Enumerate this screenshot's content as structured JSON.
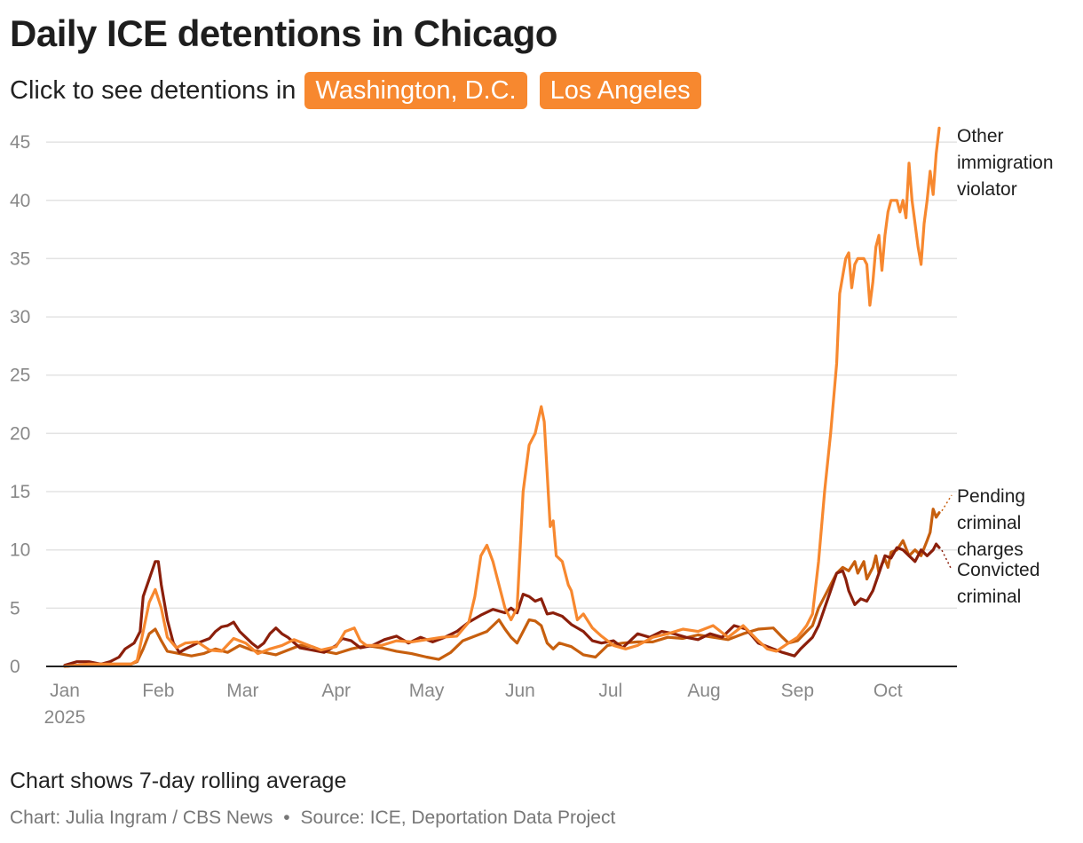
{
  "title": "Daily ICE detentions in Chicago",
  "subtitle": {
    "prefix": "Click to see detentions in",
    "buttons": [
      "Washington, D.C.",
      "Los Angeles"
    ]
  },
  "footer": {
    "note": "Chart shows 7-day rolling average",
    "credit": "Chart: Julia Ingram / CBS News",
    "separator": "•",
    "source": "Source: ICE, Deportation Data Project"
  },
  "colors": {
    "button": "#f7882f",
    "other_immigration_violator": "#f7882f",
    "pending_criminal_charges": "#c75f0e",
    "convicted_criminal": "#8b1f0b"
  },
  "chart_data": {
    "type": "line",
    "x_unit": "day of year 2025 (0 = Jan 1)",
    "x_ticks": [
      {
        "label": "Jan",
        "sublabel": "2025",
        "x": 0
      },
      {
        "label": "Feb",
        "x": 31
      },
      {
        "label": "Mar",
        "x": 59
      },
      {
        "label": "Apr",
        "x": 90
      },
      {
        "label": "May",
        "x": 120
      },
      {
        "label": "Jun",
        "x": 151
      },
      {
        "label": "Jul",
        "x": 181
      },
      {
        "label": "Aug",
        "x": 212
      },
      {
        "label": "Sep",
        "x": 243
      },
      {
        "label": "Oct",
        "x": 273
      }
    ],
    "xlim": [
      0,
      290
    ],
    "ylim": [
      0,
      46
    ],
    "y_ticks": [
      0,
      5,
      10,
      15,
      20,
      25,
      30,
      35,
      40,
      45
    ],
    "grid": true,
    "series": [
      {
        "name": "Other immigration violator",
        "label_lines": [
          "Other",
          "immigration",
          "violator"
        ],
        "color": "#f7882f",
        "points": [
          [
            0,
            0
          ],
          [
            8,
            0.2
          ],
          [
            16,
            0.2
          ],
          [
            22,
            0.2
          ],
          [
            24,
            0.5
          ],
          [
            26,
            3
          ],
          [
            28,
            5.5
          ],
          [
            30,
            6.6
          ],
          [
            32,
            5
          ],
          [
            34,
            2.5
          ],
          [
            37,
            1.6
          ],
          [
            40,
            2
          ],
          [
            44,
            2.1
          ],
          [
            48,
            1.4
          ],
          [
            52,
            1.3
          ],
          [
            56,
            2.4
          ],
          [
            60,
            2
          ],
          [
            64,
            1.1
          ],
          [
            68,
            1.5
          ],
          [
            72,
            1.8
          ],
          [
            76,
            2.3
          ],
          [
            80,
            1.9
          ],
          [
            85,
            1.4
          ],
          [
            90,
            1.7
          ],
          [
            93,
            3
          ],
          [
            96,
            3.3
          ],
          [
            98,
            2.2
          ],
          [
            100,
            1.8
          ],
          [
            105,
            1.8
          ],
          [
            110,
            2.2
          ],
          [
            115,
            2.1
          ],
          [
            120,
            2.3
          ],
          [
            125,
            2.5
          ],
          [
            130,
            2.6
          ],
          [
            134,
            3.8
          ],
          [
            136,
            6
          ],
          [
            138,
            9.5
          ],
          [
            140,
            10.4
          ],
          [
            142,
            9
          ],
          [
            144,
            7
          ],
          [
            146,
            5
          ],
          [
            148,
            4
          ],
          [
            150,
            5
          ],
          [
            152,
            15
          ],
          [
            154,
            19
          ],
          [
            156,
            20
          ],
          [
            158,
            22.3
          ],
          [
            159,
            21
          ],
          [
            161,
            12
          ],
          [
            162,
            12.5
          ],
          [
            163,
            9.5
          ],
          [
            165,
            9
          ],
          [
            167,
            7
          ],
          [
            168,
            6.5
          ],
          [
            170,
            4
          ],
          [
            172,
            4.5
          ],
          [
            175,
            3.3
          ],
          [
            178,
            2.6
          ],
          [
            182,
            1.8
          ],
          [
            186,
            1.5
          ],
          [
            190,
            1.8
          ],
          [
            195,
            2.5
          ],
          [
            200,
            2.8
          ],
          [
            205,
            3.2
          ],
          [
            210,
            3
          ],
          [
            215,
            3.5
          ],
          [
            220,
            2.5
          ],
          [
            225,
            3.5
          ],
          [
            230,
            2.2
          ],
          [
            233,
            1.5
          ],
          [
            236,
            1.3
          ],
          [
            240,
            2
          ],
          [
            243,
            2.5
          ],
          [
            246,
            3.5
          ],
          [
            248,
            4.5
          ],
          [
            250,
            9
          ],
          [
            252,
            15
          ],
          [
            254,
            20
          ],
          [
            256,
            26
          ],
          [
            257,
            32
          ],
          [
            259,
            35
          ],
          [
            260,
            35.5
          ],
          [
            261,
            32.5
          ],
          [
            262,
            34.5
          ],
          [
            263,
            35
          ],
          [
            265,
            35
          ],
          [
            266,
            34.5
          ],
          [
            267,
            31
          ],
          [
            268,
            33
          ],
          [
            269,
            36
          ],
          [
            270,
            37
          ],
          [
            271,
            34
          ],
          [
            272,
            37
          ],
          [
            273,
            39
          ],
          [
            274,
            40
          ],
          [
            276,
            40
          ],
          [
            277,
            39
          ],
          [
            278,
            40
          ],
          [
            279,
            38.5
          ],
          [
            280,
            43.2
          ],
          [
            281,
            40
          ],
          [
            282,
            38
          ],
          [
            283,
            36
          ],
          [
            284,
            34.5
          ],
          [
            285,
            38
          ],
          [
            286,
            40
          ],
          [
            287,
            42.5
          ],
          [
            288,
            40.5
          ],
          [
            289,
            44
          ],
          [
            290,
            46.2
          ]
        ]
      },
      {
        "name": "Pending criminal charges",
        "label_lines": [
          "Pending",
          "criminal",
          "charges"
        ],
        "color": "#c75f0e",
        "points": [
          [
            0,
            0
          ],
          [
            8,
            0.2
          ],
          [
            16,
            0.2
          ],
          [
            22,
            0.2
          ],
          [
            24,
            0.4
          ],
          [
            26,
            1.5
          ],
          [
            28,
            2.8
          ],
          [
            30,
            3.2
          ],
          [
            32,
            2.2
          ],
          [
            34,
            1.3
          ],
          [
            38,
            1.1
          ],
          [
            42,
            0.9
          ],
          [
            46,
            1.1
          ],
          [
            50,
            1.5
          ],
          [
            54,
            1.2
          ],
          [
            58,
            1.8
          ],
          [
            62,
            1.4
          ],
          [
            66,
            1.2
          ],
          [
            70,
            1
          ],
          [
            74,
            1.4
          ],
          [
            78,
            1.8
          ],
          [
            82,
            1.7
          ],
          [
            86,
            1.3
          ],
          [
            90,
            1.1
          ],
          [
            95,
            1.5
          ],
          [
            100,
            1.8
          ],
          [
            105,
            1.6
          ],
          [
            110,
            1.3
          ],
          [
            115,
            1.1
          ],
          [
            120,
            0.8
          ],
          [
            124,
            0.6
          ],
          [
            128,
            1.2
          ],
          [
            132,
            2.2
          ],
          [
            136,
            2.6
          ],
          [
            140,
            3
          ],
          [
            144,
            4
          ],
          [
            146,
            3.2
          ],
          [
            148,
            2.5
          ],
          [
            150,
            2
          ],
          [
            152,
            3
          ],
          [
            154,
            4
          ],
          [
            156,
            3.9
          ],
          [
            158,
            3.5
          ],
          [
            160,
            2
          ],
          [
            162,
            1.5
          ],
          [
            164,
            2
          ],
          [
            168,
            1.7
          ],
          [
            172,
            1
          ],
          [
            176,
            0.8
          ],
          [
            180,
            1.8
          ],
          [
            185,
            2
          ],
          [
            190,
            2.1
          ],
          [
            195,
            2.1
          ],
          [
            200,
            2.5
          ],
          [
            205,
            2.4
          ],
          [
            210,
            2.7
          ],
          [
            215,
            2.5
          ],
          [
            220,
            2.3
          ],
          [
            225,
            2.8
          ],
          [
            230,
            3.2
          ],
          [
            235,
            3.3
          ],
          [
            238,
            2.5
          ],
          [
            240,
            2
          ],
          [
            243,
            2.2
          ],
          [
            246,
            3
          ],
          [
            248,
            3.5
          ],
          [
            250,
            5
          ],
          [
            252,
            6
          ],
          [
            254,
            7
          ],
          [
            256,
            8
          ],
          [
            258,
            8.5
          ],
          [
            260,
            8.2
          ],
          [
            262,
            9
          ],
          [
            263,
            8
          ],
          [
            265,
            9
          ],
          [
            266,
            7.5
          ],
          [
            268,
            8.5
          ],
          [
            269,
            9.5
          ],
          [
            270,
            8
          ],
          [
            271,
            8.8
          ],
          [
            272,
            9.2
          ],
          [
            273,
            8.5
          ],
          [
            274,
            9.8
          ],
          [
            276,
            10
          ],
          [
            278,
            10.8
          ],
          [
            280,
            9.5
          ],
          [
            282,
            10
          ],
          [
            284,
            9.5
          ],
          [
            286,
            10.8
          ],
          [
            287,
            11.5
          ],
          [
            288,
            13.5
          ],
          [
            289,
            12.8
          ],
          [
            290,
            13.2
          ]
        ]
      },
      {
        "name": "Convicted criminal",
        "label_lines": [
          "Convicted",
          "criminal"
        ],
        "color": "#8b1f0b",
        "points": [
          [
            0,
            0.1
          ],
          [
            4,
            0.4
          ],
          [
            8,
            0.4
          ],
          [
            12,
            0.2
          ],
          [
            15,
            0.4
          ],
          [
            18,
            0.8
          ],
          [
            20,
            1.5
          ],
          [
            23,
            2
          ],
          [
            25,
            3
          ],
          [
            26,
            6
          ],
          [
            28,
            7.5
          ],
          [
            30,
            9
          ],
          [
            31,
            9
          ],
          [
            32,
            7
          ],
          [
            34,
            4
          ],
          [
            36,
            2
          ],
          [
            38,
            1.2
          ],
          [
            40,
            1.5
          ],
          [
            44,
            2
          ],
          [
            48,
            2.4
          ],
          [
            50,
            3
          ],
          [
            52,
            3.4
          ],
          [
            54,
            3.5
          ],
          [
            56,
            3.8
          ],
          [
            58,
            3
          ],
          [
            60,
            2.5
          ],
          [
            62,
            2
          ],
          [
            64,
            1.6
          ],
          [
            66,
            2
          ],
          [
            68,
            2.8
          ],
          [
            70,
            3.3
          ],
          [
            72,
            2.8
          ],
          [
            74,
            2.5
          ],
          [
            78,
            1.6
          ],
          [
            82,
            1.4
          ],
          [
            86,
            1.2
          ],
          [
            90,
            1.8
          ],
          [
            92,
            2.4
          ],
          [
            95,
            2.2
          ],
          [
            98,
            1.6
          ],
          [
            102,
            1.8
          ],
          [
            106,
            2.3
          ],
          [
            110,
            2.6
          ],
          [
            114,
            2
          ],
          [
            118,
            2.5
          ],
          [
            122,
            2.1
          ],
          [
            126,
            2.5
          ],
          [
            130,
            3
          ],
          [
            134,
            3.8
          ],
          [
            138,
            4.4
          ],
          [
            142,
            4.9
          ],
          [
            146,
            4.6
          ],
          [
            148,
            5
          ],
          [
            150,
            4.6
          ],
          [
            152,
            6.2
          ],
          [
            154,
            6
          ],
          [
            156,
            5.6
          ],
          [
            158,
            5.8
          ],
          [
            160,
            4.5
          ],
          [
            162,
            4.6
          ],
          [
            165,
            4.3
          ],
          [
            168,
            3.6
          ],
          [
            172,
            3
          ],
          [
            175,
            2.2
          ],
          [
            178,
            2
          ],
          [
            182,
            2.2
          ],
          [
            185,
            1.6
          ],
          [
            190,
            2.8
          ],
          [
            194,
            2.5
          ],
          [
            198,
            3
          ],
          [
            202,
            2.8
          ],
          [
            206,
            2.5
          ],
          [
            210,
            2.3
          ],
          [
            214,
            2.8
          ],
          [
            218,
            2.5
          ],
          [
            222,
            3.5
          ],
          [
            226,
            3.2
          ],
          [
            230,
            2
          ],
          [
            234,
            1.6
          ],
          [
            238,
            1.2
          ],
          [
            242,
            0.9
          ],
          [
            244,
            1.5
          ],
          [
            246,
            2
          ],
          [
            248,
            2.5
          ],
          [
            250,
            3.5
          ],
          [
            252,
            5
          ],
          [
            254,
            6.5
          ],
          [
            256,
            8
          ],
          [
            258,
            8.2
          ],
          [
            259,
            7.5
          ],
          [
            260,
            6.5
          ],
          [
            262,
            5.3
          ],
          [
            264,
            5.8
          ],
          [
            266,
            5.6
          ],
          [
            268,
            6.5
          ],
          [
            270,
            8
          ],
          [
            272,
            9.5
          ],
          [
            274,
            9.3
          ],
          [
            276,
            10.2
          ],
          [
            278,
            10
          ],
          [
            280,
            9.5
          ],
          [
            282,
            9
          ],
          [
            284,
            10
          ],
          [
            286,
            9.5
          ],
          [
            288,
            10
          ],
          [
            289,
            10.5
          ],
          [
            290,
            10.2
          ]
        ]
      }
    ]
  }
}
